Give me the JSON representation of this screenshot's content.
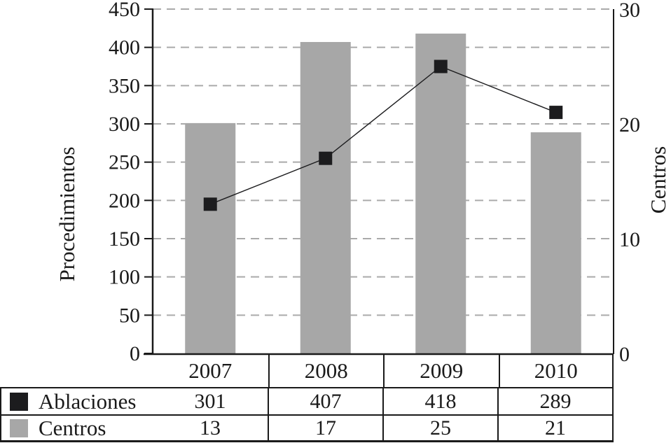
{
  "chart_data": {
    "type": "bar+line",
    "categories": [
      "2007",
      "2008",
      "2009",
      "2010"
    ],
    "series": [
      {
        "name": "Ablaciones",
        "type": "bar",
        "axis": "left",
        "values": [
          301,
          407,
          418,
          289
        ]
      },
      {
        "name": "Centros",
        "type": "line",
        "axis": "right",
        "marker": "square",
        "values": [
          13,
          17,
          25,
          21
        ]
      }
    ],
    "left_axis": {
      "label": "Procedimientos",
      "min": 0,
      "max": 450,
      "step": 50,
      "ticks": [
        "0",
        "50",
        "100",
        "150",
        "200",
        "250",
        "300",
        "350",
        "400",
        "450"
      ]
    },
    "right_axis": {
      "label": "Centros",
      "min": 0,
      "max": 30,
      "step": 10,
      "ticks": [
        "0",
        "10",
        "20",
        "30"
      ]
    },
    "grid": "dashed-horizontal",
    "legend_position": "table-below"
  },
  "table": {
    "rows": [
      {
        "swatch": "black-square",
        "label": "Ablaciones",
        "values": [
          "301",
          "407",
          "418",
          "289"
        ]
      },
      {
        "swatch": "gray-square",
        "label": "Centros",
        "values": [
          "13",
          "17",
          "25",
          "21"
        ]
      }
    ]
  },
  "colors": {
    "bar_gray": "#a7a7a7",
    "marker_black": "#1c1c1e",
    "grid_gray": "#aaaaaa",
    "axis_black": "#1a1a1a",
    "text": "#1a1a1a"
  }
}
